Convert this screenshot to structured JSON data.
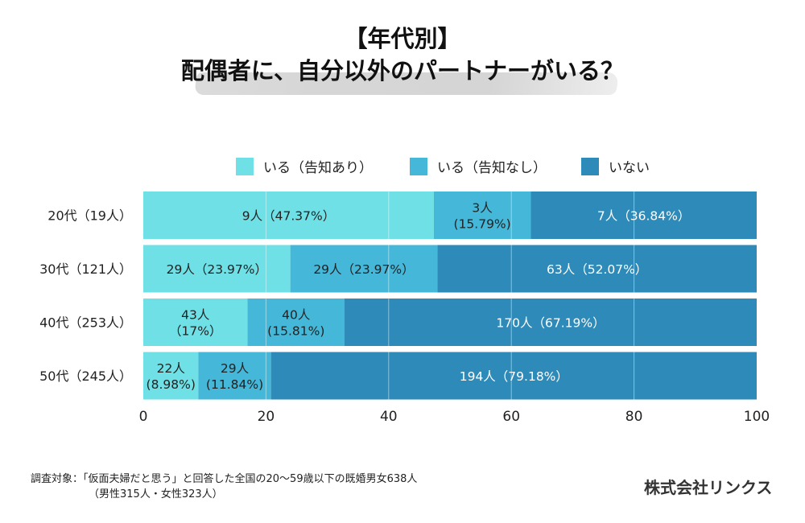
{
  "title": {
    "line1": "【年代別】",
    "line2": "配偶者に、自分以外のパートナーがいる？"
  },
  "chart_data": {
    "type": "bar",
    "orientation": "horizontal",
    "stacked": true,
    "categories": [
      "20代（19人）",
      "30代（121人）",
      "40代（253人）",
      "50代（245人）"
    ],
    "series": [
      {
        "name": "いる（告知あり）",
        "color": "#6ee0e6",
        "values": [
          47.37,
          23.97,
          17,
          8.98
        ],
        "labels": [
          [
            "9人（47.37%）"
          ],
          [
            "29人（23.97%）"
          ],
          [
            "43人",
            "（17%）"
          ],
          [
            "22人",
            "(8.98%)"
          ]
        ]
      },
      {
        "name": "いる（告知なし）",
        "color": "#45b7d8",
        "values": [
          15.79,
          23.97,
          15.81,
          11.84
        ],
        "labels": [
          [
            "3人",
            "(15.79%)"
          ],
          [
            "29人（23.97%）"
          ],
          [
            "40人",
            "(15.81%)"
          ],
          [
            "29人",
            "(11.84%)"
          ]
        ]
      },
      {
        "name": "いない",
        "color": "#2e8ab8",
        "values": [
          36.84,
          52.07,
          67.19,
          79.18
        ],
        "labels": [
          [
            "7人（36.84%）"
          ],
          [
            "63人（52.07%）"
          ],
          [
            "170人（67.19%）"
          ],
          [
            "194人（79.18%）"
          ]
        ]
      }
    ],
    "xlim": [
      0,
      100
    ],
    "xticks": [
      "0",
      "20",
      "40",
      "60",
      "80",
      "100"
    ],
    "grid": true,
    "legend_position": "top"
  },
  "footnote": {
    "line1": "調査対象：「仮面夫婦だと思う」と回答した全国の20〜59歳以下の既婚男女638人",
    "line2": "（男性315人・女性323人）"
  },
  "company": "株式会社リンクス"
}
